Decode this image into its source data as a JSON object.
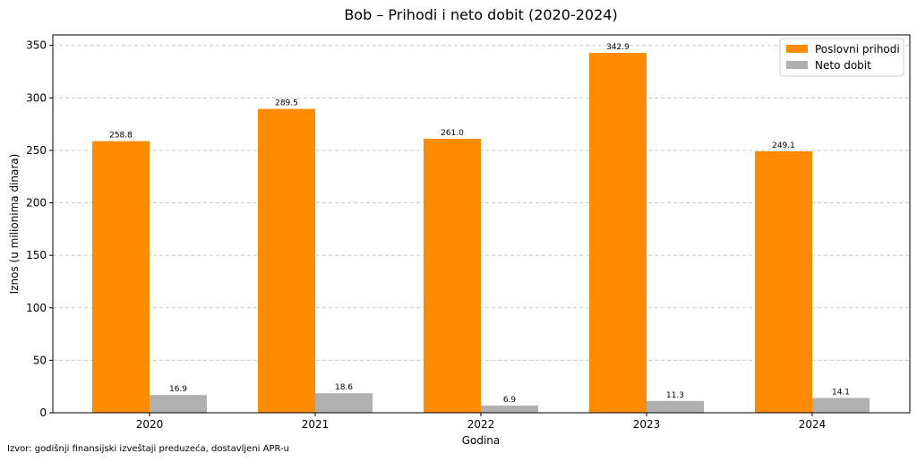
{
  "chart_data": {
    "type": "bar",
    "title": "Bob – Prihodi i neto dobit (2020-2024)",
    "xlabel": "Godina",
    "ylabel": "Iznos (u milionima dinara)",
    "categories": [
      "2020",
      "2021",
      "2022",
      "2023",
      "2024"
    ],
    "series": [
      {
        "name": "Poslovni prihodi",
        "color": "#ff8c00",
        "values": [
          258.8,
          289.5,
          261.0,
          342.9,
          249.1
        ],
        "labels": [
          "258.8",
          "289.5",
          "261.0",
          "342.9",
          "249.1"
        ]
      },
      {
        "name": "Neto dobit",
        "color": "#b0b0b0",
        "values": [
          16.9,
          18.6,
          6.9,
          11.3,
          14.1
        ],
        "labels": [
          "16.9",
          "18.6",
          "6.9",
          "11.3",
          "14.1"
        ]
      }
    ],
    "ylim": [
      0,
      360
    ],
    "yticks": [
      "0",
      "50",
      "100",
      "150",
      "200",
      "250",
      "300",
      "350"
    ],
    "grid": true,
    "legend": "top-right"
  },
  "source_note": "Izvor: godišnji finansijski izveštaji preduzeća, dostavljeni APR-u"
}
